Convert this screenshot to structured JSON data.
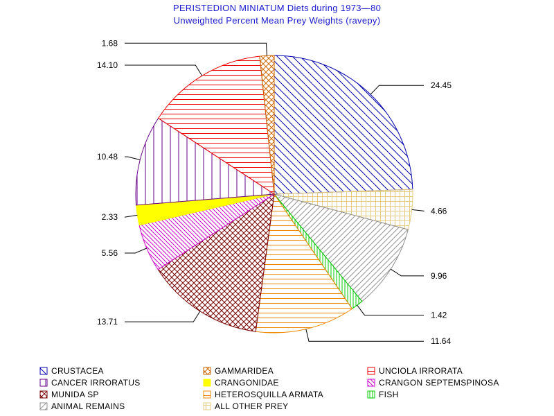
{
  "chart_data": {
    "type": "pie",
    "title": "PERISTEDION MINIATUM Diets during 1973—80",
    "subtitle": "Unweighted Percent Mean Prey Weights (ravepy)",
    "legend_position": "bottom",
    "slices": [
      {
        "name": "CRUSTACEA",
        "value": 24.45,
        "label": "24.45",
        "color": "#0000aa",
        "pattern": "diag-back"
      },
      {
        "name": "ALL OTHER PREY",
        "value": 4.66,
        "label": "4.66",
        "color": "#e6cc80",
        "pattern": "grid"
      },
      {
        "name": "ANIMAL REMAINS",
        "value": 9.96,
        "label": "9.96",
        "color": "#909090",
        "pattern": "diag-fwd"
      },
      {
        "name": "FISH",
        "value": 1.42,
        "label": "1.42",
        "color": "#00cc00",
        "pattern": "vertical-dense"
      },
      {
        "name": "HETEROSQUILLA ARMATA",
        "value": 11.64,
        "label": "11.64",
        "color": "#ee8800",
        "pattern": "horizontal"
      },
      {
        "name": "MUNIDA SP",
        "value": 13.71,
        "label": "13.71",
        "color": "#770000",
        "pattern": "crosshatch"
      },
      {
        "name": "CRANGON SEPTEMSPINOSA",
        "value": 5.56,
        "label": "5.56",
        "color": "#cc00cc",
        "pattern": "diag-back-dense"
      },
      {
        "name": "CRANGONIDAE",
        "value": 2.33,
        "label": "2.33",
        "color": "#ffff00",
        "pattern": "solid"
      },
      {
        "name": "CANCER IRRORATUS",
        "value": 10.48,
        "label": "10.48",
        "color": "#660088",
        "pattern": "vertical"
      },
      {
        "name": "UNCIOLA IRRORATA",
        "value": 14.1,
        "label": "14.10",
        "color": "#ee0000",
        "pattern": "horizontal"
      },
      {
        "name": "GAMMARIDEA",
        "value": 1.68,
        "label": "1.68",
        "color": "#cc6600",
        "pattern": "crosshatch"
      }
    ],
    "legend": [
      {
        "name": "CRUSTACEA",
        "color": "#0000aa",
        "pattern": "diag-back"
      },
      {
        "name": "GAMMARIDEA",
        "color": "#cc6600",
        "pattern": "crosshatch"
      },
      {
        "name": "UNCIOLA IRRORATA",
        "color": "#ee0000",
        "pattern": "horizontal"
      },
      {
        "name": "CANCER IRRORATUS",
        "color": "#660088",
        "pattern": "vertical"
      },
      {
        "name": "CRANGONIDAE",
        "color": "#ffff00",
        "pattern": "solid"
      },
      {
        "name": "CRANGON SEPTEMSPINOSA",
        "color": "#cc00cc",
        "pattern": "diag-back-dense"
      },
      {
        "name": "MUNIDA SP",
        "color": "#770000",
        "pattern": "crosshatch"
      },
      {
        "name": "HETEROSQUILLA ARMATA",
        "color": "#ee8800",
        "pattern": "horizontal"
      },
      {
        "name": "FISH",
        "color": "#00cc00",
        "pattern": "vertical-dense"
      },
      {
        "name": "ANIMAL REMAINS",
        "color": "#909090",
        "pattern": "diag-fwd"
      },
      {
        "name": "ALL OTHER PREY",
        "color": "#e6cc80",
        "pattern": "grid"
      }
    ]
  }
}
